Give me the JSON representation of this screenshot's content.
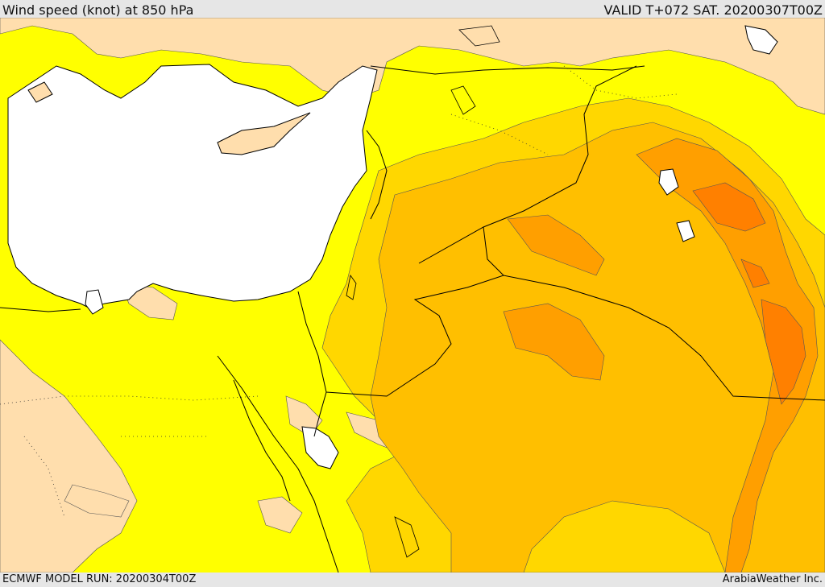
{
  "header": {
    "title": "Wind speed (knot) at 850 hPa",
    "valid": "VALID T+072 SAT. 20200307T00Z"
  },
  "footer": {
    "model_run": "ECMWF MODEL RUN: 20200304T00Z",
    "credit": "ArabiaWeather Inc."
  },
  "colors": {
    "sea": "#ffffff",
    "band_low": "#ffdead",
    "band_1": "#ffff00",
    "band_2": "#ffd700",
    "band_3": "#ffbf00",
    "band_4": "#ff9f00",
    "band_5": "#ff7f00",
    "coast": "#000000"
  }
}
